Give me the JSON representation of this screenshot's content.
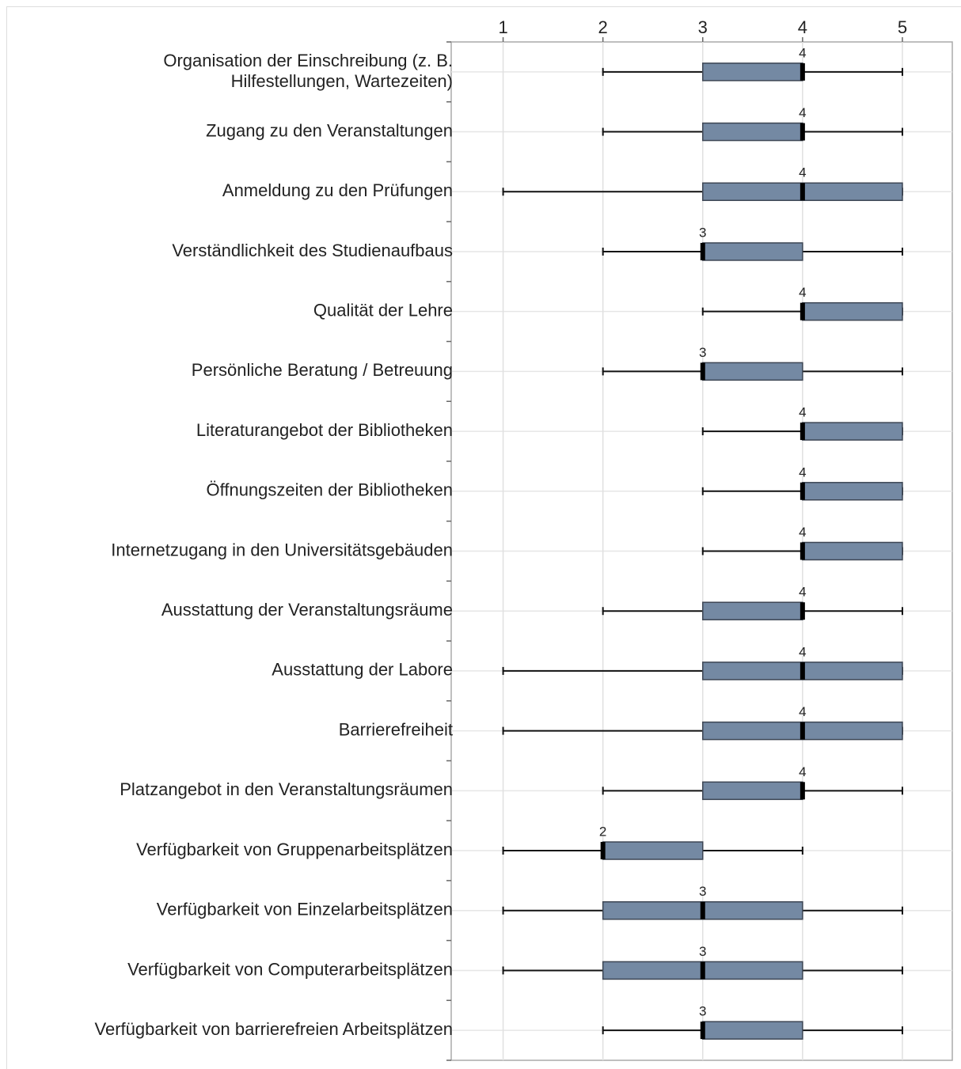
{
  "chart_data": {
    "type": "box",
    "categories": [
      "Organisation der Einschreibung (z. B.\nHilfestellungen, Wartezeiten)",
      "Zugang zu den Veranstaltungen",
      "Anmeldung zu den Prüfungen",
      "Verständlichkeit des Studienaufbaus",
      "Qualität der Lehre",
      "Persönliche Beratung / Betreuung",
      "Literaturangebot der Bibliotheken",
      "Öffnungszeiten der Bibliotheken",
      "Internetzugang in den Universitätsgebäuden",
      "Ausstattung der Veranstaltungsräume",
      "Ausstattung der Labore",
      "Barrierefreiheit",
      "Platzangebot in den Veranstaltungsräumen",
      "Verfügbarkeit von Gruppenarbeitsplätzen",
      "Verfügbarkeit von Einzelarbeitsplätzen",
      "Verfügbarkeit von Computerarbeitsplätzen",
      "Verfügbarkeit von barrierefreien Arbeitsplätzen"
    ],
    "boxes": [
      {
        "min": 2,
        "q1": 3,
        "median": 4,
        "q3": 4,
        "max": 5
      },
      {
        "min": 2,
        "q1": 3,
        "median": 4,
        "q3": 4,
        "max": 5
      },
      {
        "min": 1,
        "q1": 3,
        "median": 4,
        "q3": 5,
        "max": 5
      },
      {
        "min": 2,
        "q1": 3,
        "median": 3,
        "q3": 4,
        "max": 5
      },
      {
        "min": 3,
        "q1": 4,
        "median": 4,
        "q3": 5,
        "max": 5
      },
      {
        "min": 2,
        "q1": 3,
        "median": 3,
        "q3": 4,
        "max": 5
      },
      {
        "min": 3,
        "q1": 4,
        "median": 4,
        "q3": 5,
        "max": 5
      },
      {
        "min": 3,
        "q1": 4,
        "median": 4,
        "q3": 5,
        "max": 5
      },
      {
        "min": 3,
        "q1": 4,
        "median": 4,
        "q3": 5,
        "max": 5
      },
      {
        "min": 2,
        "q1": 3,
        "median": 4,
        "q3": 4,
        "max": 5
      },
      {
        "min": 1,
        "q1": 3,
        "median": 4,
        "q3": 5,
        "max": 5
      },
      {
        "min": 1,
        "q1": 3,
        "median": 4,
        "q3": 5,
        "max": 5
      },
      {
        "min": 2,
        "q1": 3,
        "median": 4,
        "q3": 4,
        "max": 5
      },
      {
        "min": 1,
        "q1": 2,
        "median": 2,
        "q3": 3,
        "max": 4
      },
      {
        "min": 1,
        "q1": 2,
        "median": 3,
        "q3": 4,
        "max": 5
      },
      {
        "min": 1,
        "q1": 2,
        "median": 3,
        "q3": 4,
        "max": 5
      },
      {
        "min": 2,
        "q1": 3,
        "median": 3,
        "q3": 4,
        "max": 5
      }
    ],
    "color": "#7489a3",
    "xlim": [
      0.48,
      5.5
    ],
    "xticks": [
      1,
      2,
      3,
      4,
      5
    ],
    "grid": true
  }
}
